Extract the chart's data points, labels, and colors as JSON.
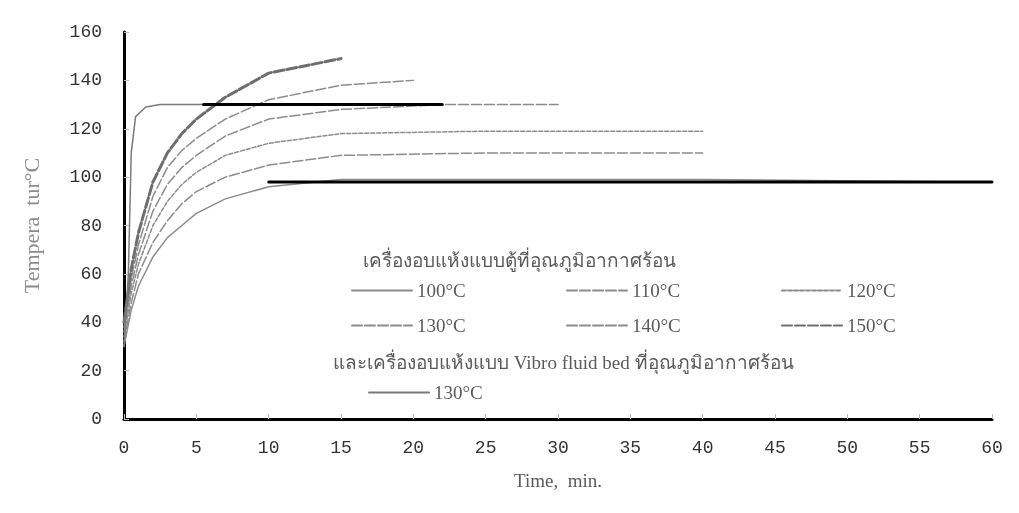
{
  "chart_data": {
    "type": "line",
    "xlabel": "Time,  min.",
    "ylabel": "Tempera  tur°C",
    "legend_title": "เครื่องอบแห้งแบบตู้ที่อุณภูมิอากาศร้อน",
    "annotations": [
      "และเครื่องอบแห้งแบบ Vibro fluid bed ที่อุณภูมิอากาศร้อน"
    ],
    "xlim": [
      0,
      60
    ],
    "ylim": [
      0,
      160
    ],
    "xticks": [
      0,
      5,
      10,
      15,
      20,
      25,
      30,
      35,
      40,
      45,
      50,
      55,
      60
    ],
    "yticks": [
      0,
      20,
      40,
      60,
      80,
      100,
      120,
      140,
      160
    ],
    "grid": false,
    "legend": "bottom right",
    "marker": "none",
    "series": [
      {
        "name": "100°C",
        "color": "#8c8c8c",
        "line_style": "solid",
        "x": [
          0,
          0.5,
          1,
          2,
          3,
          4,
          5,
          7,
          10,
          15,
          25,
          40,
          58
        ],
        "values": [
          30,
          45,
          55,
          67,
          75,
          80,
          85,
          91,
          96,
          99,
          99,
          99,
          98
        ]
      },
      {
        "name": "110°C",
        "color": "#8c8c8c",
        "line_style": "dashed",
        "x": [
          0,
          0.5,
          1,
          2,
          3,
          4,
          5,
          7,
          10,
          15,
          25,
          40
        ],
        "values": [
          32,
          48,
          60,
          73,
          82,
          89,
          94,
          100,
          105,
          109,
          110,
          110
        ]
      },
      {
        "name": "120°C",
        "color": "#8c8c8c",
        "line_style": "dotted",
        "x": [
          0,
          0.5,
          1,
          2,
          3,
          4,
          5,
          7,
          10,
          15,
          25,
          40
        ],
        "values": [
          34,
          52,
          64,
          80,
          90,
          97,
          102,
          109,
          114,
          118,
          119,
          119
        ]
      },
      {
        "name": "130°C",
        "color": "#8c8c8c",
        "line_style": "dashed",
        "x": [
          0,
          0.5,
          1,
          2,
          3,
          4,
          5,
          7,
          10,
          15,
          22,
          30
        ],
        "values": [
          36,
          55,
          68,
          86,
          97,
          104,
          109,
          117,
          124,
          128,
          130,
          130
        ]
      },
      {
        "name": "140°C",
        "color": "#8c8c8c",
        "line_style": "dashed",
        "x": [
          0,
          0.5,
          1,
          2,
          3,
          4,
          5,
          7,
          10,
          15,
          20
        ],
        "values": [
          38,
          58,
          72,
          92,
          104,
          111,
          116,
          124,
          132,
          138,
          140
        ]
      },
      {
        "name": "150°C",
        "color": "#6e6e6e",
        "line_style": "dashed",
        "x": [
          0,
          0.5,
          1,
          2,
          3,
          4,
          5,
          7,
          10,
          15
        ],
        "values": [
          40,
          62,
          77,
          98,
          110,
          118,
          124,
          133,
          143,
          149
        ]
      },
      {
        "name": "130°C",
        "color": "#7a7a7a",
        "line_style": "solid",
        "x": [
          0,
          0.3,
          0.5,
          0.8,
          1.5,
          2.5,
          20
        ],
        "values": [
          30,
          60,
          110,
          125,
          129,
          130,
          130
        ]
      },
      {
        "color": "#000000",
        "line_style": "solid",
        "x": [
          5.5,
          22
        ],
        "values": [
          130,
          130
        ]
      },
      {
        "color": "#000000",
        "line_style": "solid",
        "x": [
          10,
          60
        ],
        "values": [
          98,
          98
        ]
      }
    ]
  }
}
